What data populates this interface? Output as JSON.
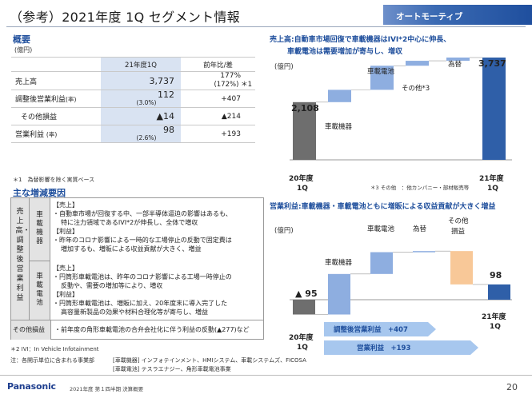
{
  "header": {
    "title": "（参考）2021年度 1Q セグメント情報",
    "segment": "オートモーティブ"
  },
  "overview": {
    "heading": "概要",
    "unit": "(億円)",
    "col_current": "21年度1Q",
    "col_yoy": "前年比/差",
    "rows": [
      {
        "label": "売上高",
        "value": "3,737",
        "sub": "",
        "yoy": "177%",
        "yoy_sub": "(172%) ＊1"
      },
      {
        "label": "調整後営業利益",
        "label_note": "(率)",
        "value": "112",
        "sub": "(3.0%)",
        "yoy": "+407",
        "yoy_sub": ""
      },
      {
        "label": "その他損益",
        "value": "▲14",
        "sub": "",
        "yoy": "▲214",
        "yoy_sub": ""
      },
      {
        "label": "営業利益",
        "label_note": "(率)",
        "value": "98",
        "sub": "(2.6%)",
        "yoy": "+193",
        "yoy_sub": ""
      }
    ],
    "footnote": "＊1　為替影響を除く実質ベース"
  },
  "reasons": {
    "heading": "主な増減要因",
    "left_label": "売上高・調整後営業利益",
    "auto": {
      "label": "車載機器",
      "sales_tag": "【売上】",
      "sales_line1": "・自動車市場が回復する中、一部半導体逼迫の影響はあるも、",
      "sales_line2": "特に注力領域であるIVI*2が伸長し、全体で増収",
      "profit_tag": "【利益】",
      "profit_line1": "・昨年のコロナ影響による一時的な工場停止の反動で固定費は",
      "profit_line2": "増加するも、増販による収益貢献が大きく、増益"
    },
    "battery": {
      "label": "車載電池",
      "sales_tag": "【売上】",
      "sales_line1": "・円筒形車載電池は、昨年のコロナ影響による工場一時停止の",
      "sales_line2": "反動や、需要の増加等により、増収",
      "profit_tag": "【利益】",
      "profit_line1": "・円筒形車載電池は、増販に加え、20年度末に導入完了した",
      "profit_line2": "高容量新製品の効果や材料合理化等が寄与し、増益"
    },
    "other_label": "その他損益",
    "other_text": "・前年度の角形車載電池の合弁会社化に伴う利益の反動(▲277)など"
  },
  "notes": {
    "ivi": "＊2 IVI：In Vehicle Infotainment",
    "sub_label": "注：各開示単位に含まれる事業部",
    "auto_biz": "[車載機器] インフォテインメント、HMIシステム、車載システムズ、FICOSA",
    "battery_biz": "[車載電池] テスラエナジー、角形車載電池事業"
  },
  "wf1": {
    "title_line1": "売上高:自動車市場回復で車載機器はIVI*2中心に伸長、",
    "title_line2": "車載電池は需要増加が寄与し、増収",
    "unit": "(億円)",
    "start_label": "2,108",
    "end_label": "3,737",
    "x_start": "20年度",
    "x_start2": "1Q",
    "x_end": "21年度",
    "x_end2": "1Q",
    "footnote": "＊3 その他　：他カンパニー・部材販売等",
    "steps": [
      {
        "name": "車載機器",
        "delta": 450
      },
      {
        "name": "車載電池",
        "delta": 880
      },
      {
        "name": "その他*3",
        "delta": 180
      },
      {
        "name": "為替",
        "delta": 119
      }
    ],
    "start": 2108,
    "end": 3737,
    "colors": {
      "total": "#6e6e6e",
      "step": "#8eaee0",
      "end": "#2f5fa8"
    }
  },
  "wf2": {
    "title": "営業利益:車載機器・車載電池ともに増販による収益貢献が大きく増益",
    "unit": "(億円)",
    "start_label": "▲ 95",
    "end_label": "98",
    "x_start": "20年度",
    "x_start2": "1Q",
    "x_end": "21年度",
    "x_end2": "1Q",
    "other_name1": "その他",
    "other_name2": "損益",
    "steps": [
      {
        "name": "車載機器",
        "delta": 260,
        "kind": "step"
      },
      {
        "name": "車載電池",
        "delta": 140,
        "kind": "step"
      },
      {
        "name": "為替",
        "delta": 7,
        "kind": "step"
      },
      {
        "name": "その他損益",
        "delta": -214,
        "kind": "other"
      }
    ],
    "start": -95,
    "end": 98,
    "arrow1": "調整後営業利益　+407",
    "arrow2": "営業利益　+193",
    "colors": {
      "start": "#6e6e6e",
      "step": "#8eaee0",
      "other": "#f8c898",
      "end": "#2f5fa8"
    }
  },
  "footer": {
    "logo": "Panasonic",
    "text": "2021年度 第１四半期 決算概要",
    "page": "20"
  }
}
